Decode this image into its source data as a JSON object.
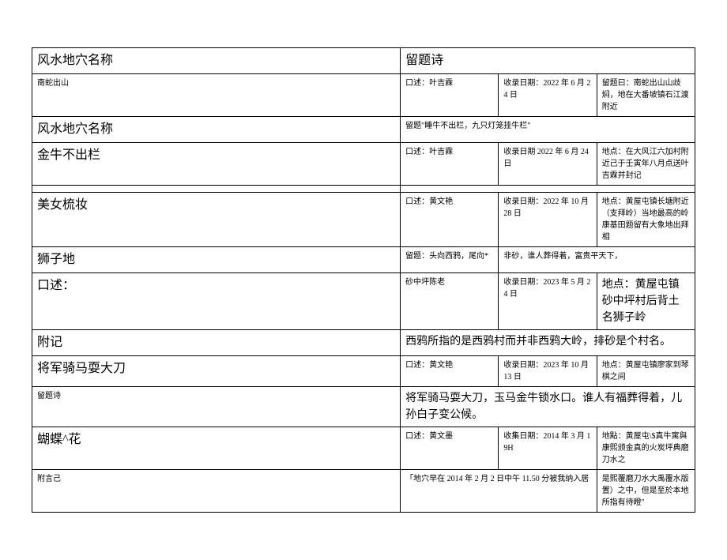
{
  "rows": [
    {
      "c1": {
        "text": "风水地穴名称",
        "cls": "large"
      },
      "c2": {
        "text": "留题诗",
        "cls": "large",
        "span": 3
      }
    },
    {
      "c1": {
        "text": "南蛇出山",
        "cls": "small"
      },
      "c2": {
        "text": "口述：叶吉霖",
        "cls": "small"
      },
      "c3": {
        "text": "收录日期：2022 年 6 月 24 日",
        "cls": "small"
      },
      "c4": {
        "text": "留题曰：南蛇出山山歧焖，地在大番坡镇石江渡附近",
        "cls": "small"
      }
    },
    {
      "c1": {
        "text": "风水地穴名称",
        "cls": "large"
      },
      "c2": {
        "text": "留题\"睡牛不出栏，九只灯笼挂牛栏\"",
        "cls": "small",
        "span": 3
      }
    },
    {
      "c1": {
        "text": "金牛不出栏",
        "cls": "large"
      },
      "c2": {
        "text": "口述：叶吉霖",
        "cls": "small"
      },
      "c3": {
        "text": "收录日期 2022 年 6 月 24 日",
        "cls": "small"
      },
      "c4": {
        "text": "地点：在大风江六加村附近己于壬寅年八月点送叶吉霖并封记",
        "cls": "small"
      }
    },
    {
      "c1": {
        "text": "",
        "cls": ""
      },
      "c2": {
        "text": "",
        "cls": "",
        "span": 3
      }
    },
    {
      "c1": {
        "text": "美女梳妆",
        "cls": "large"
      },
      "c2": {
        "text": "口述：黄文艳",
        "cls": "small"
      },
      "c3": {
        "text": "收录日期：2022 年 10 月 28 日",
        "cls": "small"
      },
      "c4": {
        "text": "地点：黄屋屯镇长塘附近（支拜岭）当地最高的岭康基田题留有大象地出拜相",
        "cls": "small"
      }
    },
    {
      "c1": {
        "text": "狮子地",
        "cls": "large"
      },
      "c2": {
        "text": "留题：头向西鸦，尾向*",
        "cls": "small"
      },
      "c3": {
        "text": "非砂，谁人葬得着，富贵平天下，",
        "cls": "small",
        "span": 2
      }
    },
    {
      "c1": {
        "text": "口述：",
        "cls": "large"
      },
      "c2": {
        "text": "砂中坪陈老",
        "cls": "small"
      },
      "c3": {
        "text": "收录日期：2023 年 5 月 24 日",
        "cls": "small"
      },
      "c4": {
        "text": "地点：黄屋屯镇砂中坪村后背土名狮子岭",
        "cls": "medium"
      }
    },
    {
      "c1": {
        "text": "附记",
        "cls": "large"
      },
      "c2": {
        "text": "西鸦所指的是西鸦村而并非西鸦大岭，排砂是个村名。",
        "cls": "medium",
        "span": 3
      }
    },
    {
      "c1": {
        "text": "将军骑马耍大刀",
        "cls": "large"
      },
      "c2": {
        "text": "口述：黄文艳",
        "cls": "small"
      },
      "c3": {
        "text": "收录日期：2023 年 10 月 13 日",
        "cls": "small"
      },
      "c4": {
        "text": "地点：黄屋屯镇廖家到琴棋之间",
        "cls": "small"
      }
    },
    {
      "c1": {
        "text": "留题诗",
        "cls": "small"
      },
      "c2": {
        "text": "将军骑马耍大刀，玉马金牛锁水口。谁人有福葬得着，儿孙白子变公候。",
        "cls": "medium",
        "span": 3
      }
    },
    {
      "c1": {
        "text": "蝴蝶^花",
        "cls": "large"
      },
      "c2": {
        "text": "口述：黄文墨",
        "cls": "small"
      },
      "c3": {
        "text": "收集日期：2014 年 3 月 19H",
        "cls": "small"
      },
      "c4": {
        "text": "地點：黄屋屯\\$真牛寓與康熙颁金真的火炭坪典磨刀水之",
        "cls": "small"
      }
    },
    {
      "c1": {
        "text": "附言己",
        "cls": "small"
      },
      "c2": {
        "text": "「地穴早在 2014 年 2 月 2 日中午 11.50 分被我纳入居",
        "cls": "small",
        "span": 2
      },
      "c4": {
        "text": "是熙覆磨刀水大禹覆水版置）之中，但是至於本地所指有待瞪\"",
        "cls": "small"
      }
    }
  ]
}
